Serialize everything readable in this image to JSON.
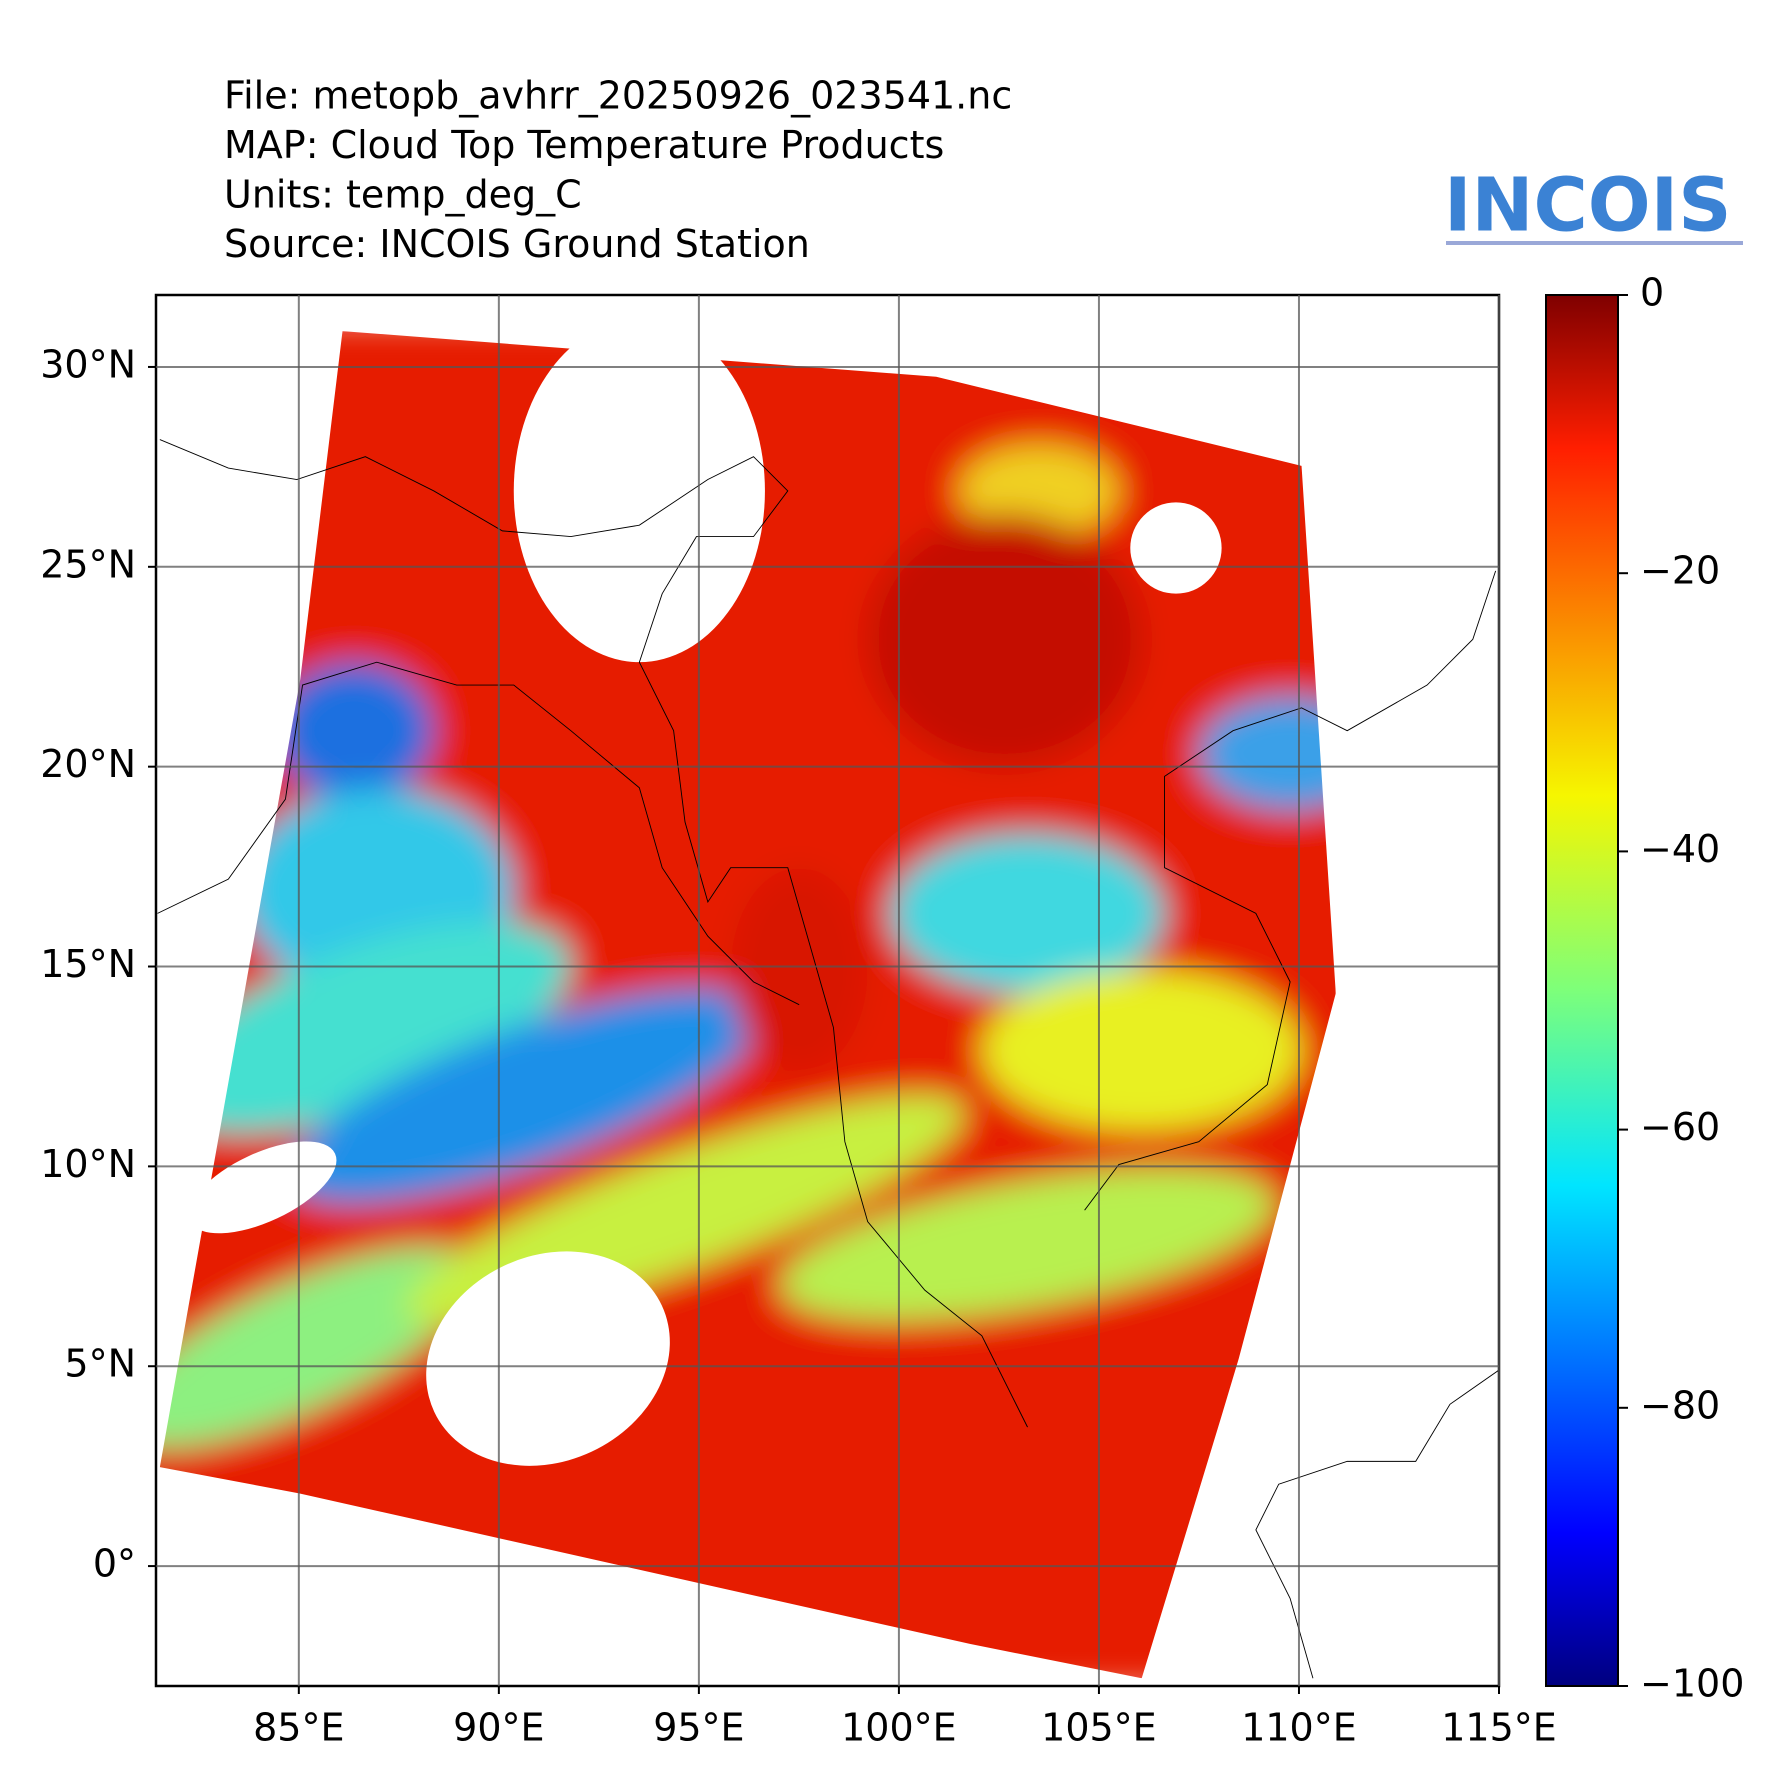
{
  "chart_data": {
    "type": "map",
    "title_lines": [
      "File: metopb_avhrr_20250926_023541.nc",
      "MAP: Cloud Top Temperature Products",
      "Units: temp_deg_C",
      "Source: INCOIS Ground Station"
    ],
    "logo": "INCOIS",
    "xlim": [
      81.43,
      115
    ],
    "ylim": [
      -3,
      31.8
    ],
    "xticks": [
      {
        "value": 85,
        "label": "85°E"
      },
      {
        "value": 90,
        "label": "90°E"
      },
      {
        "value": 95,
        "label": "95°E"
      },
      {
        "value": 100,
        "label": "100°E"
      },
      {
        "value": 105,
        "label": "105°E"
      },
      {
        "value": 110,
        "label": "110°E"
      },
      {
        "value": 115,
        "label": "115°E"
      }
    ],
    "yticks": [
      {
        "value": 0,
        "label": "0°"
      },
      {
        "value": 5,
        "label": "5°N"
      },
      {
        "value": 10,
        "label": "10°N"
      },
      {
        "value": 15,
        "label": "15°N"
      },
      {
        "value": 20,
        "label": "20°N"
      },
      {
        "value": 25,
        "label": "25°N"
      },
      {
        "value": 30,
        "label": "30°N"
      }
    ],
    "grid": true,
    "colorbar": {
      "lim": [
        -100,
        0
      ],
      "ticks": [
        {
          "value": -100,
          "label": "−100"
        },
        {
          "value": -80,
          "label": "−80"
        },
        {
          "value": -60,
          "label": "−60"
        },
        {
          "value": -40,
          "label": "−40"
        },
        {
          "value": -20,
          "label": "−20"
        },
        0
      ]
    }
  }
}
